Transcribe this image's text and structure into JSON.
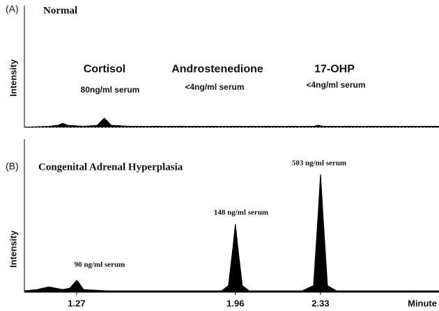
{
  "chart_data": [
    {
      "type": "line",
      "panel_label": "(A)",
      "title": "Normal",
      "ylabel": "Intensity",
      "annotations": [
        "Cortisol",
        "80ng/ml serum",
        "Androstenedione",
        "<4ng/ml serum",
        "17-OHP",
        "<4ng/ml serum"
      ],
      "x": [
        1.043,
        1.15,
        1.19,
        1.21,
        1.23,
        1.3,
        1.36,
        1.38,
        1.39,
        1.4,
        1.42,
        1.5,
        1.8,
        2.1,
        2.3,
        2.32,
        2.34,
        2.5,
        2.845
      ],
      "values": [
        0,
        1,
        2,
        4,
        2,
        1,
        2,
        7,
        9,
        7,
        2,
        1,
        1,
        1,
        1,
        2,
        1,
        1,
        1
      ],
      "color": "#000000",
      "xlim": [
        1.043,
        2.845
      ],
      "ylim": [
        0,
        100
      ]
    },
    {
      "type": "line",
      "panel_label": "(B)",
      "title": "Congenital Adrenal Hyperplasia",
      "ylabel": "Intensity",
      "xlabel": "Minute",
      "annotations": [
        "90 ng/ml serum",
        "148 ng/ml serum",
        "503 ng/ml serum"
      ],
      "x": [
        1.043,
        1.1,
        1.12,
        1.15,
        1.18,
        1.21,
        1.24,
        1.26,
        1.27,
        1.28,
        1.3,
        1.4,
        1.6,
        1.9,
        1.93,
        1.95,
        1.96,
        1.97,
        1.99,
        2.02,
        2.25,
        2.3,
        2.32,
        2.33,
        2.34,
        2.36,
        2.4,
        2.845
      ],
      "values": [
        1,
        2,
        3,
        4,
        3,
        2,
        3,
        7,
        9,
        7,
        2,
        1,
        1,
        1,
        5,
        35,
        52,
        35,
        5,
        1,
        1,
        5,
        60,
        90,
        60,
        5,
        1,
        1
      ],
      "color": "#000000",
      "xlim": [
        1.043,
        2.845
      ],
      "ylim": [
        0,
        100
      ],
      "xticks": [
        1.27,
        1.96,
        2.33
      ]
    }
  ]
}
